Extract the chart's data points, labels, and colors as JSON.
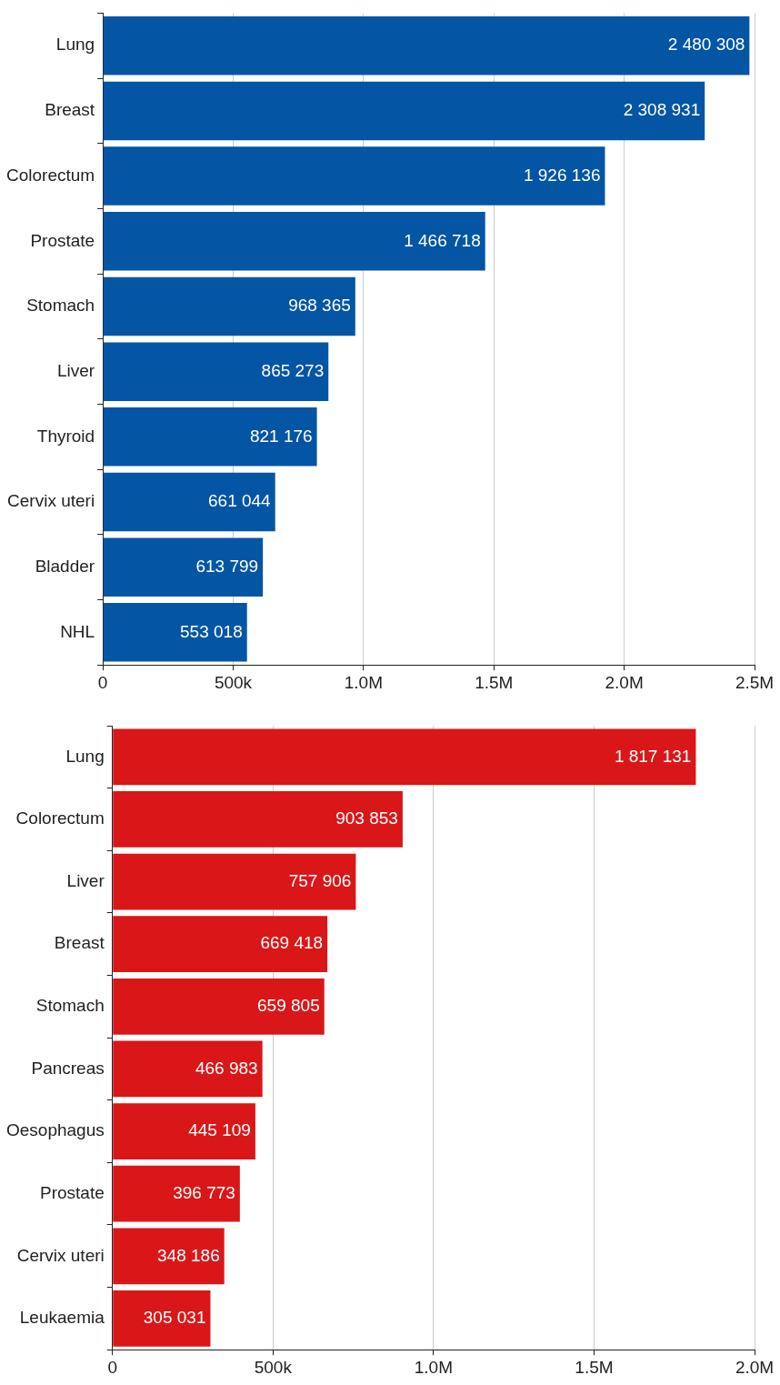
{
  "chart_data": [
    {
      "type": "bar",
      "orientation": "horizontal",
      "categories": [
        "Lung",
        "Breast",
        "Colorectum",
        "Prostate",
        "Stomach",
        "Liver",
        "Thyroid",
        "Cervix uteri",
        "Bladder",
        "NHL"
      ],
      "values": [
        2480308,
        2308931,
        1926136,
        1466718,
        968365,
        865273,
        821176,
        661044,
        613799,
        553018
      ],
      "value_labels": [
        "2 480 308",
        "2 308 931",
        "1 926 136",
        "1 466 718",
        "968 365",
        "865 273",
        "821 176",
        "661 044",
        "613 799",
        "553 018"
      ],
      "color": "#0456a4",
      "xlim": [
        0,
        2500000
      ],
      "xticks": [
        0,
        {
          "value": 500000,
          "label": "500k"
        },
        {
          "value": 1000000,
          "label": "1.0M"
        },
        {
          "value": 1500000,
          "label": "1.5M"
        },
        {
          "value": 2000000,
          "label": "2.0M"
        },
        {
          "value": 2500000,
          "label": "2.5M"
        }
      ],
      "grid": "x",
      "legend": false
    },
    {
      "type": "bar",
      "orientation": "horizontal",
      "categories": [
        "Lung",
        "Colorectum",
        "Liver",
        "Breast",
        "Stomach",
        "Pancreas",
        "Oesophagus",
        "Prostate",
        "Cervix uteri",
        "Leukaemia"
      ],
      "values": [
        1817131,
        903853,
        757906,
        669418,
        659805,
        466983,
        445109,
        396773,
        348186,
        305031
      ],
      "value_labels": [
        "1 817 131",
        "903 853",
        "757 906",
        "669 418",
        "659 805",
        "466 983",
        "445 109",
        "396 773",
        "348 186",
        "305 031"
      ],
      "color": "#d91719",
      "xlim": [
        0,
        2000000
      ],
      "xticks": [
        0,
        {
          "value": 500000,
          "label": "500k"
        },
        {
          "value": 1000000,
          "label": "1.0M"
        },
        {
          "value": 1500000,
          "label": "1.5M"
        },
        {
          "value": 2000000,
          "label": "2.0M"
        }
      ],
      "grid": "x",
      "legend": false
    }
  ]
}
